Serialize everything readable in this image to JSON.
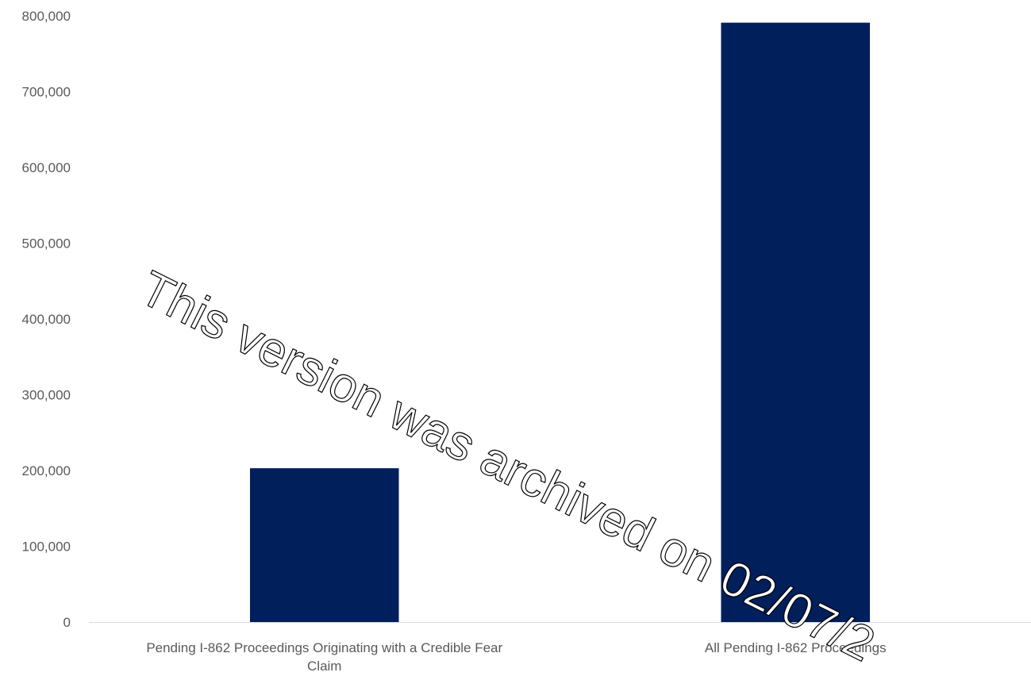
{
  "chart_data": {
    "type": "bar",
    "categories": [
      [
        "Pending I-862 Proceedings Originating with a Credible Fear",
        "Claim"
      ],
      [
        "All Pending I-862 Proceedings"
      ]
    ],
    "values": [
      203000,
      791000
    ],
    "ylim": [
      0,
      800000
    ],
    "yticks": [
      {
        "value": 0,
        "label": "0"
      },
      {
        "value": 100000,
        "label": "100,000"
      },
      {
        "value": 200000,
        "label": "200,000"
      },
      {
        "value": 300000,
        "label": "300,000"
      },
      {
        "value": 400000,
        "label": "400,000"
      },
      {
        "value": 500000,
        "label": "500,000"
      },
      {
        "value": 600000,
        "label": "600,000"
      },
      {
        "value": 700000,
        "label": "700,000"
      },
      {
        "value": 800000,
        "label": "800,000"
      }
    ],
    "grid": false,
    "legend": "none",
    "bar_color": "#001f5b",
    "axis_color": "#d9d9d9"
  },
  "watermark": {
    "text": "This version was archived on 02/07/2"
  }
}
